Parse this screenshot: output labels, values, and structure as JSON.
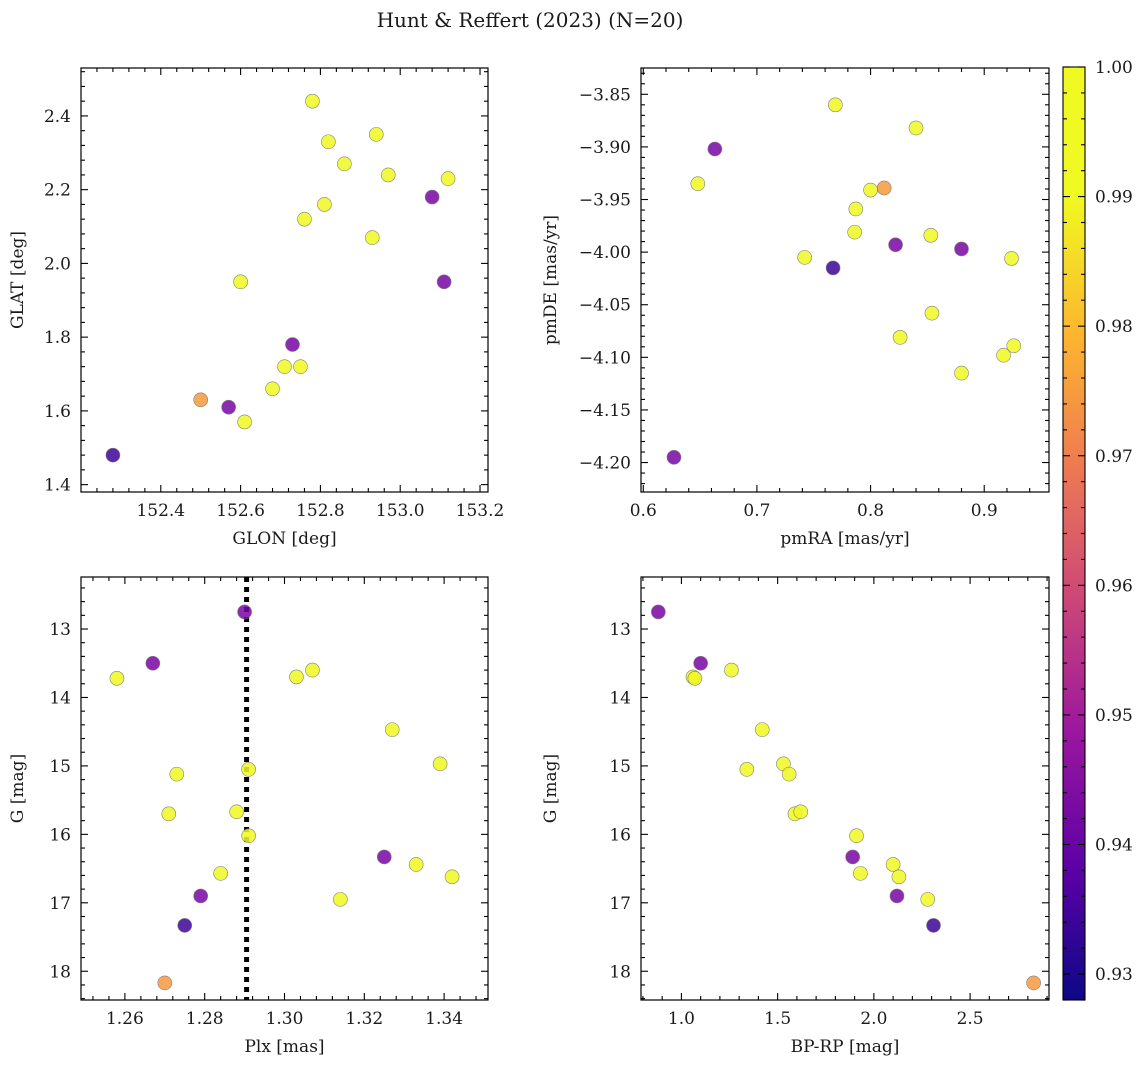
{
  "figure_title": "Hunt & Reffert (2023) (N=20)",
  "colorbar": {
    "min": 0.928,
    "max": 1.0,
    "ticks": [
      "0.93",
      "0.94",
      "0.95",
      "0.96",
      "0.97",
      "0.98",
      "0.99",
      "1.00"
    ],
    "tick_values": [
      0.93,
      0.94,
      0.95,
      0.96,
      0.97,
      0.98,
      0.99,
      1.0
    ],
    "colormap": "plasma"
  },
  "chart_data": [
    {
      "type": "scatter",
      "xlabel": "GLON [deg]",
      "ylabel": "GLAT [deg]",
      "xlim": [
        152.2,
        153.22
      ],
      "ylim": [
        1.38,
        2.53
      ],
      "xticks": [
        "152.4",
        "152.6",
        "152.8",
        "153.0",
        "153.2"
      ],
      "xtick_values": [
        152.4,
        152.6,
        152.8,
        153.0,
        153.2
      ],
      "yticks": [
        "1.4",
        "1.6",
        "1.8",
        "2.0",
        "2.2",
        "2.4"
      ],
      "ytick_values": [
        1.4,
        1.6,
        1.8,
        2.0,
        2.2,
        2.4
      ],
      "x": [
        152.78,
        152.82,
        152.94,
        152.86,
        152.97,
        152.81,
        152.76,
        153.12,
        152.93,
        152.6,
        152.71,
        152.75,
        152.68,
        152.61,
        152.28,
        152.5,
        152.57,
        152.73,
        153.08,
        153.11
      ],
      "y": [
        2.44,
        2.33,
        2.35,
        2.27,
        2.24,
        2.16,
        2.12,
        2.23,
        2.07,
        1.95,
        1.72,
        1.72,
        1.66,
        1.57,
        1.48,
        1.63,
        1.61,
        1.78,
        2.18,
        1.95
      ],
      "c": [
        1.0,
        1.0,
        1.0,
        1.0,
        1.0,
        1.0,
        1.0,
        1.0,
        1.0,
        1.0,
        1.0,
        1.0,
        1.0,
        1.0,
        0.935,
        0.983,
        0.945,
        0.945,
        0.945,
        0.945
      ]
    },
    {
      "type": "scatter",
      "xlabel": "pmRA [mas/yr]",
      "ylabel": "pmDE [mas/yr]",
      "xlim": [
        0.598,
        0.957
      ],
      "ylim": [
        -4.228,
        -3.825
      ],
      "xticks": [
        "0.6",
        "0.7",
        "0.8",
        "0.9"
      ],
      "xtick_values": [
        0.6,
        0.7,
        0.8,
        0.9
      ],
      "yticks": [
        "−3.85",
        "−3.90",
        "−3.95",
        "−4.00",
        "−4.05",
        "−4.10",
        "−4.15",
        "−4.20"
      ],
      "ytick_values": [
        -3.85,
        -3.9,
        -3.95,
        -4.0,
        -4.05,
        -4.1,
        -4.15,
        -4.2
      ],
      "x": [
        0.769,
        0.84,
        0.648,
        0.8,
        0.787,
        0.786,
        0.853,
        0.742,
        0.924,
        0.854,
        0.826,
        0.926,
        0.917,
        0.88,
        0.663,
        0.812,
        0.822,
        0.88,
        0.767,
        0.627
      ],
      "y": [
        -3.86,
        -3.882,
        -3.935,
        -3.941,
        -3.959,
        -3.981,
        -3.984,
        -4.005,
        -4.006,
        -4.058,
        -4.081,
        -4.089,
        -4.098,
        -4.115,
        -3.902,
        -3.939,
        -3.993,
        -3.997,
        -4.015,
        -4.195
      ],
      "c": [
        1.0,
        1.0,
        1.0,
        1.0,
        1.0,
        1.0,
        1.0,
        1.0,
        1.0,
        1.0,
        1.0,
        1.0,
        1.0,
        1.0,
        0.945,
        0.983,
        0.945,
        0.945,
        0.935,
        0.945
      ]
    },
    {
      "type": "scatter",
      "xlabel": "Plx [mas]",
      "ylabel": "G [mag]",
      "xlim": [
        1.249,
        1.351
      ],
      "ylim": [
        18.42,
        12.24
      ],
      "y_inverted": true,
      "xticks": [
        "1.26",
        "1.28",
        "1.30",
        "1.32",
        "1.34"
      ],
      "xtick_values": [
        1.26,
        1.28,
        1.3,
        1.32,
        1.34
      ],
      "yticks": [
        "13",
        "14",
        "15",
        "16",
        "17",
        "18"
      ],
      "ytick_values": [
        13,
        14,
        15,
        16,
        17,
        18
      ],
      "vline": {
        "x": 1.2905,
        "style": "dotted"
      },
      "x": [
        1.258,
        1.303,
        1.307,
        1.327,
        1.339,
        1.273,
        1.291,
        1.271,
        1.288,
        1.291,
        1.333,
        1.284,
        1.342,
        1.314,
        1.29,
        1.267,
        1.325,
        1.279,
        1.275,
        1.27
      ],
      "y": [
        13.72,
        13.7,
        13.6,
        14.47,
        14.97,
        15.12,
        15.05,
        15.7,
        15.67,
        16.02,
        16.44,
        16.57,
        16.62,
        16.95,
        12.75,
        13.5,
        16.33,
        16.9,
        17.33,
        18.17
      ],
      "c": [
        1.0,
        1.0,
        1.0,
        1.0,
        1.0,
        1.0,
        1.0,
        1.0,
        1.0,
        1.0,
        1.0,
        1.0,
        1.0,
        1.0,
        0.945,
        0.945,
        0.945,
        0.945,
        0.935,
        0.983
      ]
    },
    {
      "type": "scatter",
      "xlabel": "BP-RP [mag]",
      "ylabel": "G [mag]",
      "xlim": [
        0.79,
        2.91
      ],
      "ylim": [
        18.42,
        12.24
      ],
      "y_inverted": true,
      "xticks": [
        "1.0",
        "1.5",
        "2.0",
        "2.5"
      ],
      "xtick_values": [
        1.0,
        1.5,
        2.0,
        2.5
      ],
      "yticks": [
        "13",
        "14",
        "15",
        "16",
        "17",
        "18"
      ],
      "ytick_values": [
        13,
        14,
        15,
        16,
        17,
        18
      ],
      "x": [
        1.06,
        1.07,
        1.26,
        1.42,
        1.53,
        1.56,
        1.34,
        1.59,
        1.62,
        1.91,
        2.1,
        1.93,
        2.13,
        2.28,
        0.88,
        1.1,
        1.89,
        2.12,
        2.31,
        2.83
      ],
      "y": [
        13.7,
        13.72,
        13.6,
        14.47,
        14.97,
        15.12,
        15.05,
        15.7,
        15.67,
        16.02,
        16.44,
        16.57,
        16.62,
        16.95,
        12.75,
        13.5,
        16.33,
        16.9,
        17.33,
        18.17
      ],
      "c": [
        1.0,
        1.0,
        1.0,
        1.0,
        1.0,
        1.0,
        1.0,
        1.0,
        1.0,
        1.0,
        1.0,
        1.0,
        1.0,
        1.0,
        0.945,
        0.945,
        0.945,
        0.945,
        0.935,
        0.983
      ]
    }
  ]
}
